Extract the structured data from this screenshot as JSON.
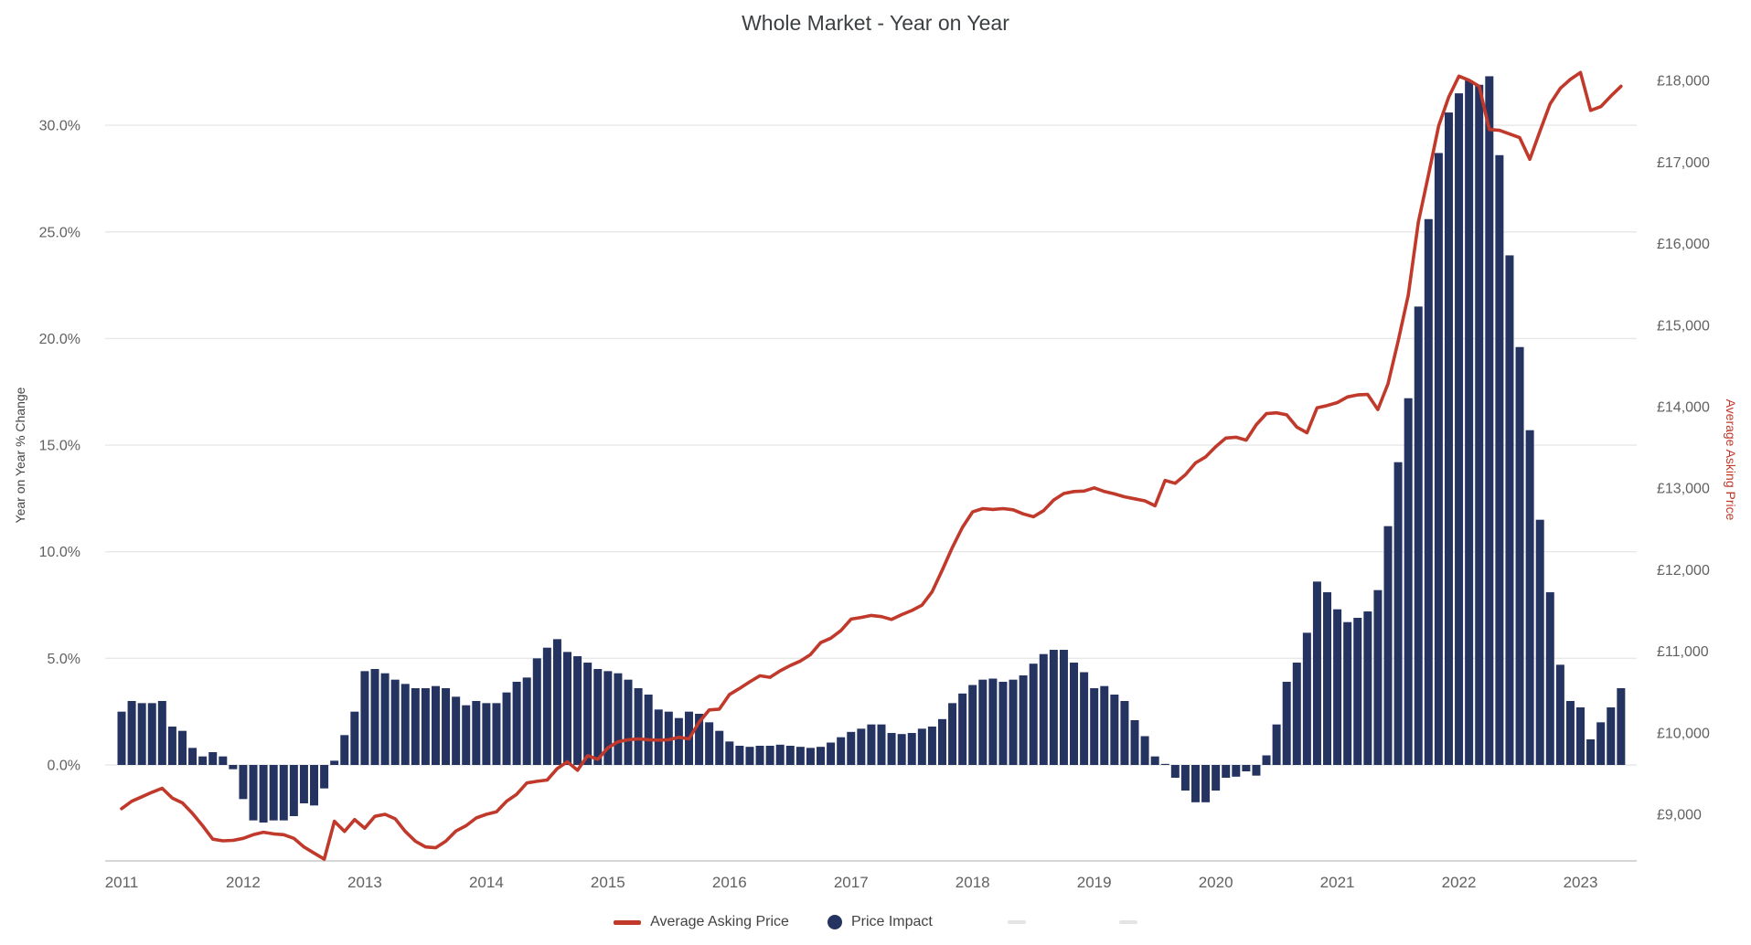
{
  "title": "Whole Market - Year on Year",
  "legend": {
    "items": [
      {
        "label": "Average Asking Price",
        "marker": "line-dash",
        "color": "#c0392b"
      },
      {
        "label": "Price Impact",
        "marker": "dot",
        "color": "#253361"
      }
    ],
    "hidden_item_marks": 2
  },
  "colors": {
    "bar": "#253361",
    "line": "#c0392b",
    "gridline": "#e8e8e8",
    "axis_line": "#c9c9c9",
    "tick_text": "#616161",
    "title_text": "#3c4043"
  },
  "chart_data": {
    "type": "combo-bar-line",
    "x": {
      "frequency": "monthly",
      "start": "2011-01",
      "end": "2023-05",
      "year_labels": [
        "2011",
        "2012",
        "2013",
        "2014",
        "2015",
        "2016",
        "2017",
        "2018",
        "2019",
        "2020",
        "2021",
        "2022",
        "2023"
      ]
    },
    "left_axis": {
      "title": "Year on Year % Change",
      "ticks": [
        "0.0%",
        "5.0%",
        "10.0%",
        "15.0%",
        "20.0%",
        "25.0%",
        "30.0%"
      ],
      "tick_values": [
        0,
        5,
        10,
        15,
        20,
        25,
        30
      ],
      "range": [
        -4.1,
        33.4
      ]
    },
    "right_axis": {
      "title": "Average Asking Price",
      "ticks": [
        "£9,000",
        "£10,000",
        "£11,000",
        "£12,000",
        "£13,000",
        "£14,000",
        "£15,000",
        "£16,000",
        "£17,000",
        "£18,000"
      ],
      "tick_values": [
        9000,
        10000,
        11000,
        12000,
        13000,
        14000,
        15000,
        16000,
        17000,
        18000
      ],
      "range": [
        8540,
        18320
      ]
    },
    "series": [
      {
        "name": "Price Impact",
        "type": "bar",
        "axis": "left",
        "unit": "percent",
        "color": "#253361",
        "values_by_year": {
          "2011": [
            2.5,
            3.0,
            2.9,
            2.9,
            3.0,
            1.8,
            1.6,
            0.8,
            0.4,
            0.6,
            0.4,
            -0.2
          ],
          "2012": [
            -1.6,
            -2.6,
            -2.7,
            -2.6,
            -2.6,
            -2.4,
            -1.8,
            -1.9,
            -1.1,
            0.2,
            1.4,
            2.5
          ],
          "2013": [
            4.4,
            4.5,
            4.3,
            4.0,
            3.8,
            3.6,
            3.6,
            3.7,
            3.6,
            3.2,
            2.8,
            3.0
          ],
          "2014": [
            2.9,
            2.9,
            3.4,
            3.9,
            4.1,
            5.0,
            5.5,
            5.9,
            5.3,
            5.1,
            4.8,
            4.5
          ],
          "2015": [
            4.4,
            4.3,
            4.0,
            3.6,
            3.3,
            2.6,
            2.5,
            2.2,
            2.5,
            2.4,
            2.0,
            1.6
          ],
          "2016": [
            1.1,
            0.9,
            0.85,
            0.9,
            0.9,
            0.95,
            0.9,
            0.85,
            0.8,
            0.85,
            1.05,
            1.3
          ],
          "2017": [
            1.55,
            1.7,
            1.9,
            1.9,
            1.5,
            1.45,
            1.5,
            1.7,
            1.8,
            2.15,
            2.9,
            3.35
          ],
          "2018": [
            3.75,
            4.0,
            4.05,
            3.9,
            4.0,
            4.2,
            4.75,
            5.2,
            5.4,
            5.4,
            4.8,
            4.35
          ],
          "2019": [
            3.6,
            3.7,
            3.3,
            3.0,
            2.1,
            1.35,
            0.4,
            0.05,
            -0.6,
            -1.2,
            -1.75,
            -1.75
          ],
          "2020": [
            -1.2,
            -0.6,
            -0.55,
            -0.3,
            -0.5,
            0.45,
            1.9,
            3.9,
            4.8,
            6.2,
            8.6,
            8.1
          ],
          "2021": [
            7.3,
            6.7,
            6.9,
            7.2,
            8.2,
            11.2,
            14.2,
            17.2,
            21.5,
            25.6,
            28.7,
            30.6
          ],
          "2022": [
            31.5,
            32.1,
            31.9,
            32.3,
            28.6,
            23.9,
            19.6,
            15.7,
            11.5,
            8.1,
            4.7,
            3.0
          ],
          "2023": [
            2.7,
            1.2,
            2.0,
            2.7,
            3.6
          ]
        }
      },
      {
        "name": "Average Asking Price",
        "type": "line",
        "axis": "right",
        "unit": "GBP",
        "color": "#c0392b",
        "values_by_year": {
          "2011": [
            9070,
            9160,
            9215,
            9270,
            9320,
            9200,
            9140,
            9010,
            8860,
            8695,
            8675,
            8680
          ],
          "2012": [
            8705,
            8750,
            8780,
            8760,
            8750,
            8705,
            8600,
            8525,
            8450,
            8915,
            8790,
            8935
          ],
          "2013": [
            8830,
            8975,
            9000,
            8945,
            8790,
            8670,
            8600,
            8590,
            8670,
            8795,
            8860,
            8955
          ],
          "2014": [
            9000,
            9030,
            9160,
            9245,
            9385,
            9405,
            9420,
            9560,
            9645,
            9540,
            9720,
            9675
          ],
          "2015": [
            9815,
            9890,
            9915,
            9925,
            9915,
            9910,
            9915,
            9945,
            9925,
            10130,
            10280,
            10290
          ],
          "2016": [
            10470,
            10545,
            10625,
            10700,
            10680,
            10760,
            10825,
            10880,
            10960,
            11105,
            11160,
            11255
          ],
          "2017": [
            11395,
            11415,
            11440,
            11425,
            11390,
            11450,
            11500,
            11565,
            11730,
            11995,
            12275,
            12520
          ],
          "2018": [
            12710,
            12750,
            12740,
            12750,
            12735,
            12685,
            12650,
            12725,
            12855,
            12935,
            12960,
            12965
          ],
          "2019": [
            13005,
            12960,
            12930,
            12895,
            12870,
            12845,
            12785,
            13095,
            13060,
            13165,
            13310,
            13385
          ],
          "2020": [
            13510,
            13615,
            13625,
            13590,
            13780,
            13915,
            13925,
            13900,
            13750,
            13680,
            13985,
            14015
          ],
          "2021": [
            14050,
            14120,
            14145,
            14150,
            13965,
            14280,
            14805,
            15370,
            16265,
            16845,
            17445,
            17800
          ],
          "2022": [
            18055,
            18005,
            17930,
            17400,
            17390,
            17345,
            17300,
            17035,
            17380,
            17715,
            17905,
            18015
          ],
          "2023": [
            18100,
            17635,
            17680,
            17810,
            17930
          ]
        }
      }
    ]
  }
}
